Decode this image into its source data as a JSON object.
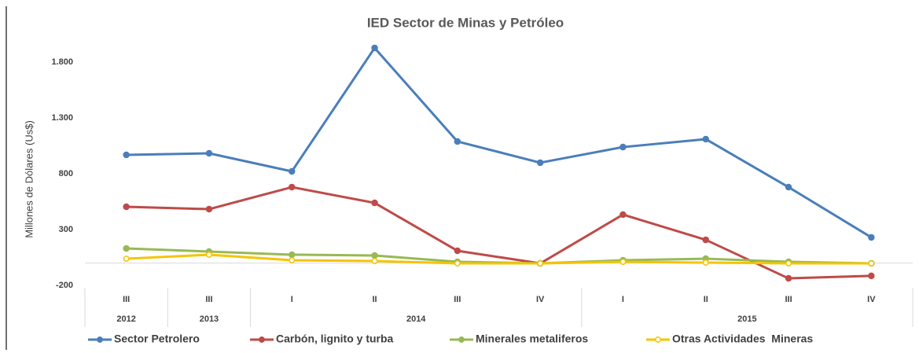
{
  "chart_data": {
    "type": "line",
    "title": "IED Sector de Minas y Petróleo",
    "y_label": "Millones de Dólares (Us$)",
    "categories": [
      "III",
      "III",
      "I",
      "II",
      "III",
      "IV",
      "I",
      "II",
      "III",
      "IV"
    ],
    "year_groups": [
      {
        "label": "2012",
        "count": 1
      },
      {
        "label": "2013",
        "count": 1
      },
      {
        "label": "2014",
        "count": 4
      },
      {
        "label": "2015",
        "count": 4
      }
    ],
    "series": [
      {
        "name": "Sector Petrolero",
        "color": "#4a7ebb",
        "values": [
          969,
          983,
          821,
          1927,
          1089,
          899,
          1039,
          1110,
          680,
          230
        ]
      },
      {
        "name": "Carbón, lignito y turba",
        "color": "#be4b48",
        "values": [
          504,
          483,
          680,
          539,
          110,
          -3,
          434,
          208,
          -137,
          -115
        ]
      },
      {
        "name": "Minerales metaliferos",
        "color": "#98b954",
        "values": [
          131,
          103,
          75,
          68,
          11,
          -3,
          25,
          39,
          11,
          -3
        ]
      },
      {
        "name": "Otras Actividades  Mineras",
        "color": "#f5c400",
        "hollow": true,
        "values": [
          39,
          75,
          25,
          18,
          -3,
          -3,
          11,
          4,
          -3,
          -3
        ]
      }
    ],
    "ylim": [
      -200,
      2000
    ],
    "yticks": [
      -200,
      300,
      800,
      {
        "value": 1300,
        "label": "1.300"
      },
      {
        "value": 1800,
        "label": "1.800"
      }
    ],
    "legend": "bottom"
  }
}
